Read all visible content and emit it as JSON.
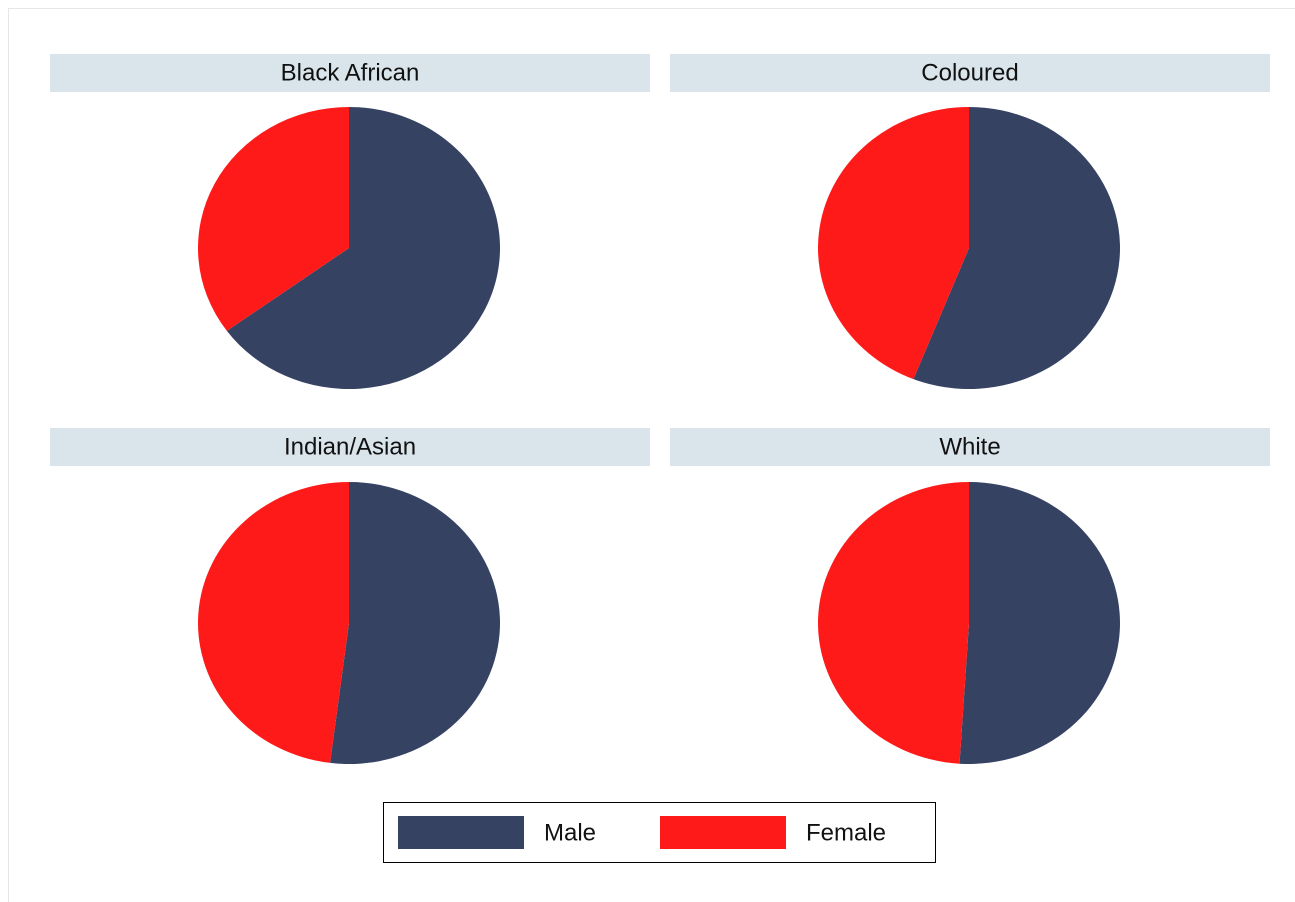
{
  "chart_data": {
    "type": "pie",
    "categories": [
      "Male",
      "Female"
    ],
    "colors": [
      "#364262",
      "#ff1a1a"
    ],
    "panels": [
      {
        "title": "Black African",
        "values": [
          65,
          35
        ]
      },
      {
        "title": "Coloured",
        "values": [
          56,
          44
        ]
      },
      {
        "title": "Indian/Asian",
        "values": [
          52,
          48
        ]
      },
      {
        "title": "White",
        "values": [
          51,
          49
        ]
      }
    ]
  }
}
